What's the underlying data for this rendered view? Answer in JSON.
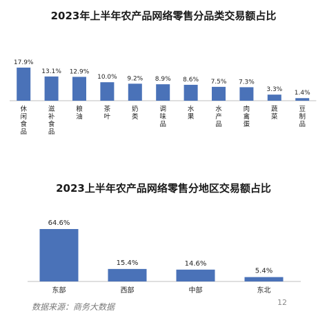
{
  "chart_data": [
    {
      "type": "bar",
      "title": "2023年上半年农产品网络零售分品类交易额占比",
      "categories": [
        "休闲食品",
        "滋补食品",
        "粮油",
        "茶叶",
        "奶类",
        "调味品",
        "水果",
        "水产品",
        "肉禽蛋",
        "蔬菜",
        "豆制品"
      ],
      "values": [
        17.9,
        13.1,
        12.9,
        10.0,
        9.2,
        8.9,
        8.6,
        7.5,
        7.3,
        3.3,
        1.4
      ],
      "value_labels": [
        "17.9%",
        "13.1%",
        "12.9%",
        "10.0%",
        "9.2%",
        "8.9%",
        "8.6%",
        "7.5%",
        "7.3%",
        "3.3%",
        "1.4%"
      ],
      "xlabel": "",
      "ylabel": "",
      "ylim": [
        0,
        20
      ],
      "grid": false,
      "bar_color": "#4a72b8"
    },
    {
      "type": "bar",
      "title": "2023上半年农产品网络零售分地区交易额占比",
      "categories": [
        "东部",
        "西部",
        "中部",
        "东北"
      ],
      "values": [
        64.6,
        15.4,
        14.6,
        5.4
      ],
      "value_labels": [
        "64.6%",
        "15.4%",
        "14.6%",
        "5.4%"
      ],
      "xlabel": "",
      "ylabel": "",
      "ylim": [
        0,
        70
      ],
      "grid": false,
      "bar_color": "#4a72b8"
    }
  ],
  "footer": {
    "source": "数据来源：商务大数据",
    "page_number": "12"
  }
}
